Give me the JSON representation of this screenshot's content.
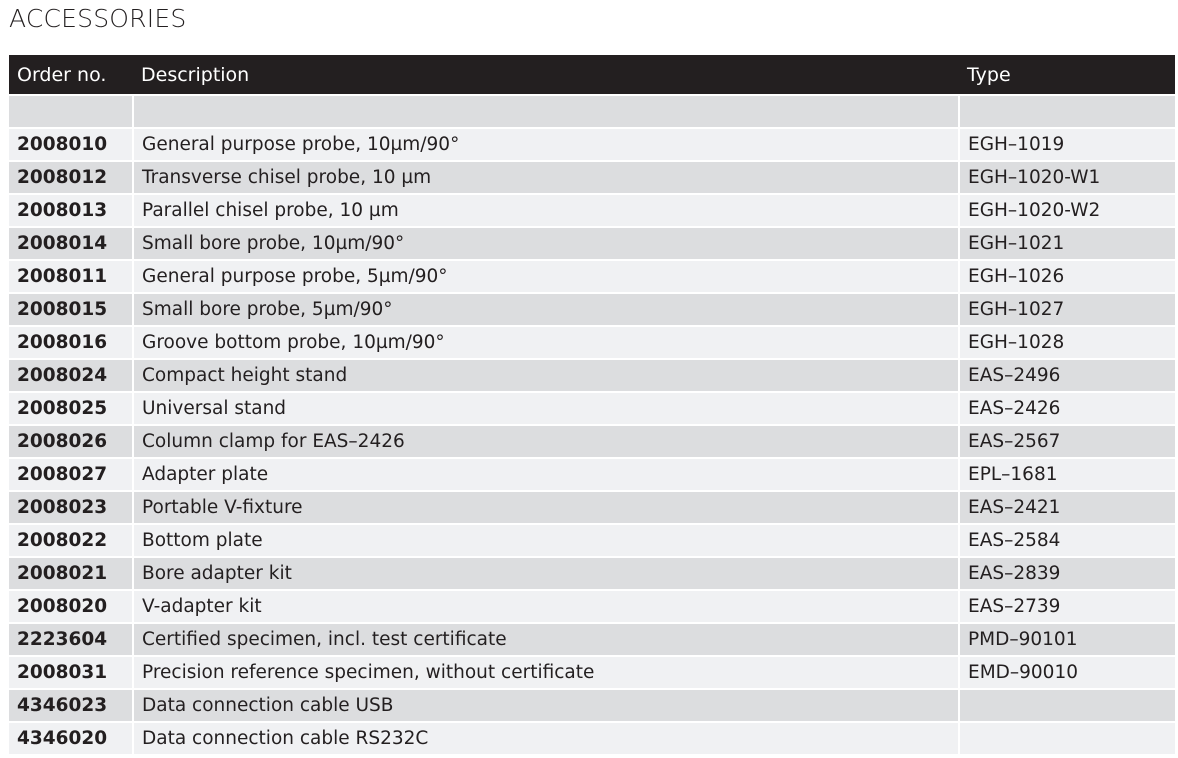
{
  "title": "ACCESSORIES",
  "headers": {
    "order": "Order no.",
    "description": "Description",
    "type": "Type"
  },
  "rows": [
    {
      "order": "",
      "description": "",
      "type": ""
    },
    {
      "order": "2008010",
      "description": "General purpose probe, 10µm/90°",
      "type": "EGH–1019"
    },
    {
      "order": "2008012",
      "description": "Transverse chisel probe, 10 µm",
      "type": "EGH–1020-W1"
    },
    {
      "order": "2008013",
      "description": "Parallel chisel probe, 10 µm",
      "type": "EGH–1020-W2"
    },
    {
      "order": "2008014",
      "description": "Small bore probe, 10µm/90°",
      "type": "EGH–1021"
    },
    {
      "order": "2008011",
      "description": "General purpose probe, 5µm/90°",
      "type": "EGH–1026"
    },
    {
      "order": "2008015",
      "description": "Small bore probe, 5µm/90°",
      "type": "EGH–1027"
    },
    {
      "order": "2008016",
      "description": "Groove bottom probe, 10µm/90°",
      "type": "EGH–1028"
    },
    {
      "order": "2008024",
      "description": "Compact height stand",
      "type": "EAS–2496"
    },
    {
      "order": "2008025",
      "description": "Universal stand",
      "type": "EAS–2426"
    },
    {
      "order": "2008026",
      "description": "Column clamp for EAS–2426",
      "type": "EAS–2567"
    },
    {
      "order": "2008027",
      "description": "Adapter plate",
      "type": "EPL–1681"
    },
    {
      "order": "2008023",
      "description": "Portable V-fixture",
      "type": "EAS–2421"
    },
    {
      "order": "2008022",
      "description": "Bottom plate",
      "type": "EAS–2584"
    },
    {
      "order": "2008021",
      "description": "Bore adapter kit",
      "type": "EAS–2839"
    },
    {
      "order": "2008020",
      "description": "V-adapter kit",
      "type": "EAS–2739"
    },
    {
      "order": "2223604",
      "description": "Certified specimen, incl. test certificate",
      "type": "PMD–90101"
    },
    {
      "order": "2008031",
      "description": "Precision reference specimen, without certificate",
      "type": "EMD–90010"
    },
    {
      "order": "4346023",
      "description": "Data connection cable USB",
      "type": ""
    },
    {
      "order": "4346020",
      "description": "Data connection cable RS232C",
      "type": ""
    }
  ]
}
